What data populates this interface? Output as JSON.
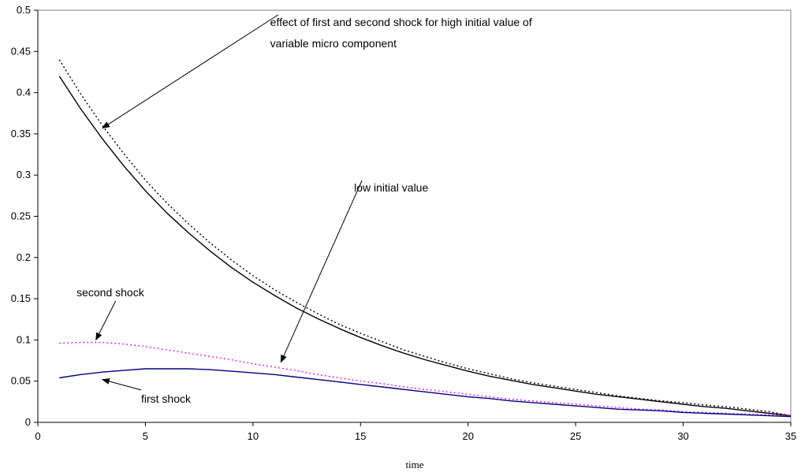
{
  "chart_data": {
    "type": "line",
    "title": "",
    "xlabel": "time",
    "ylabel": "",
    "xlim": [
      0,
      35
    ],
    "ylim": [
      0,
      0.5
    ],
    "xticks": [
      0,
      5,
      10,
      15,
      20,
      25,
      30,
      35
    ],
    "yticks": [
      0,
      0.05,
      0.1,
      0.15,
      0.2,
      0.25,
      0.3,
      0.35,
      0.4,
      0.45,
      0.5
    ],
    "ytick_labels": [
      "0",
      "0.05",
      "0.1",
      "0.15",
      "0.2",
      "0.25",
      "0.3",
      "0.35",
      "0.4",
      "0.45",
      "0.5"
    ],
    "grid": false,
    "legend": "none",
    "x": [
      1,
      2,
      3,
      4,
      5,
      6,
      7,
      8,
      9,
      10,
      11,
      12,
      13,
      14,
      15,
      16,
      17,
      18,
      19,
      20,
      21,
      22,
      23,
      24,
      25,
      26,
      27,
      28,
      29,
      30,
      31,
      32,
      33,
      34,
      35
    ],
    "series": [
      {
        "color": "#000000",
        "style": "dotted",
        "values": [
          0.44,
          0.398,
          0.36,
          0.326,
          0.294,
          0.266,
          0.241,
          0.218,
          0.197,
          0.178,
          0.161,
          0.146,
          0.132,
          0.119,
          0.108,
          0.098,
          0.088,
          0.08,
          0.072,
          0.065,
          0.059,
          0.053,
          0.048,
          0.044,
          0.04,
          0.036,
          0.032,
          0.029,
          0.026,
          0.024,
          0.021,
          0.019,
          0.016,
          0.013,
          0.008
        ]
      },
      {
        "color": "#000000",
        "style": "solid",
        "values": [
          0.42,
          0.38,
          0.344,
          0.311,
          0.281,
          0.254,
          0.23,
          0.208,
          0.188,
          0.17,
          0.154,
          0.139,
          0.126,
          0.114,
          0.103,
          0.093,
          0.084,
          0.076,
          0.069,
          0.062,
          0.056,
          0.051,
          0.046,
          0.042,
          0.038,
          0.034,
          0.031,
          0.028,
          0.025,
          0.022,
          0.019,
          0.017,
          0.014,
          0.011,
          0.008
        ]
      },
      {
        "color": "#e020e0",
        "style": "dotted",
        "values": [
          0.096,
          0.097,
          0.097,
          0.095,
          0.092,
          0.088,
          0.084,
          0.08,
          0.076,
          0.071,
          0.067,
          0.063,
          0.058,
          0.054,
          0.05,
          0.047,
          0.043,
          0.04,
          0.037,
          0.034,
          0.031,
          0.028,
          0.026,
          0.024,
          0.022,
          0.02,
          0.018,
          0.016,
          0.015,
          0.013,
          0.012,
          0.011,
          0.01,
          0.009,
          0.008
        ]
      },
      {
        "color": "#000080",
        "style": "solid",
        "values": [
          0.054,
          0.058,
          0.061,
          0.063,
          0.065,
          0.065,
          0.065,
          0.064,
          0.062,
          0.06,
          0.058,
          0.055,
          0.052,
          0.049,
          0.046,
          0.043,
          0.04,
          0.037,
          0.034,
          0.031,
          0.029,
          0.026,
          0.024,
          0.022,
          0.02,
          0.018,
          0.016,
          0.015,
          0.014,
          0.012,
          0.011,
          0.01,
          0.009,
          0.008,
          0.007
        ]
      }
    ],
    "annotations": [
      {
        "text": "effect of first and second shock for high initial value of",
        "pos": [
          10.8,
          0.481
        ],
        "arrow_to": [
          3.0,
          0.357
        ]
      },
      {
        "text": "variable micro component",
        "pos": [
          10.8,
          0.455
        ]
      },
      {
        "text": "low initial value",
        "pos": [
          14.7,
          0.28
        ],
        "arrow_to": [
          11.3,
          0.073
        ]
      },
      {
        "text": "second shock",
        "pos": [
          1.8,
          0.153
        ],
        "arrow_to": [
          2.7,
          0.1
        ]
      },
      {
        "text": "first shock",
        "pos": [
          4.8,
          0.024
        ],
        "arrow_to": [
          3.0,
          0.052
        ]
      }
    ]
  }
}
